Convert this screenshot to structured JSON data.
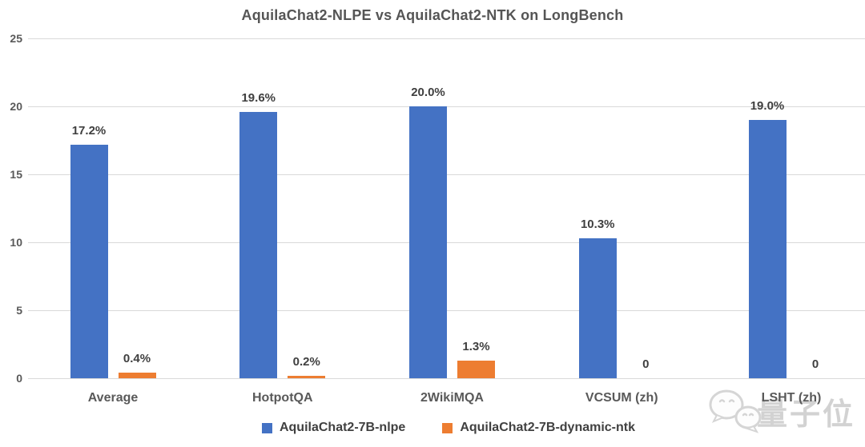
{
  "chart_data": {
    "type": "bar",
    "title": "AquilaChat2-NLPE vs AquilaChat2-NTK on LongBench",
    "categories": [
      "Average",
      "HotpotQA",
      "2WikiMQA",
      "VCSUM (zh)",
      "LSHT (zh)"
    ],
    "series": [
      {
        "name": "AquilaChat2-7B-nlpe",
        "color": "#4472C4",
        "values": [
          17.2,
          19.6,
          20.0,
          10.3,
          19.0
        ],
        "labels": [
          "17.2%",
          "19.6%",
          "20.0%",
          "10.3%",
          "19.0%"
        ]
      },
      {
        "name": "AquilaChat2-7B-dynamic-ntk",
        "color": "#ED7D31",
        "values": [
          0.4,
          0.2,
          1.3,
          0,
          0
        ],
        "labels": [
          "0.4%",
          "0.2%",
          "1.3%",
          "0",
          "0"
        ]
      }
    ],
    "ylim": [
      0,
      25
    ],
    "yticks": [
      0,
      5,
      10,
      15,
      20,
      25
    ],
    "ytick_labels": [
      "0",
      "5",
      "10",
      "15",
      "20",
      "25"
    ],
    "grid": true,
    "legend_position": "bottom",
    "xlabel": "",
    "ylabel": ""
  },
  "colors": {
    "grid": "#d9d9d9",
    "axis_text": "#595959",
    "data_label_text": "#3f3f3f",
    "title_text": "#555555",
    "watermark": "#c2c2c2"
  },
  "watermark": {
    "text": "量子位",
    "icon": "wechat-chat-bubbles"
  }
}
